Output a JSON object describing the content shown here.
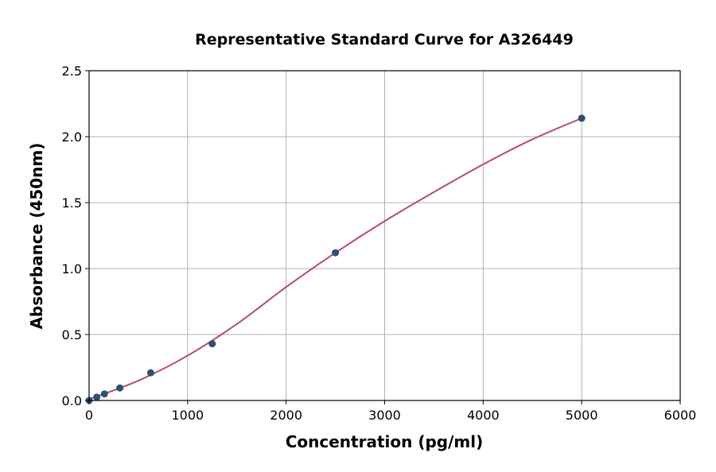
{
  "chart_data": {
    "type": "scatter",
    "title": "Representative Standard Curve for A326449",
    "xlabel": "Concentration (pg/ml)",
    "ylabel": "Absorbance (450nm)",
    "xlim": [
      0,
      6000
    ],
    "ylim": [
      0,
      2.5
    ],
    "xticks": [
      0,
      1000,
      2000,
      3000,
      4000,
      5000,
      6000
    ],
    "yticks": [
      "0.0",
      "0.5",
      "1.0",
      "1.5",
      "2.0",
      "2.5"
    ],
    "grid": true,
    "points": {
      "x": [
        0,
        78,
        156,
        312,
        625,
        1250,
        2500,
        5000
      ],
      "y": [
        0.0,
        0.025,
        0.05,
        0.095,
        0.21,
        0.43,
        1.12,
        2.14
      ]
    },
    "fit_curve": {
      "x": [
        0,
        500,
        1000,
        1500,
        2000,
        2500,
        3000,
        3500,
        4000,
        4500,
        5000
      ],
      "y": [
        0.01,
        0.15,
        0.34,
        0.58,
        0.86,
        1.12,
        1.36,
        1.58,
        1.79,
        1.98,
        2.14
      ]
    },
    "colors": {
      "points": "#2e4f73",
      "curve": "#b84a6e",
      "grid": "#b0b0b0"
    }
  }
}
